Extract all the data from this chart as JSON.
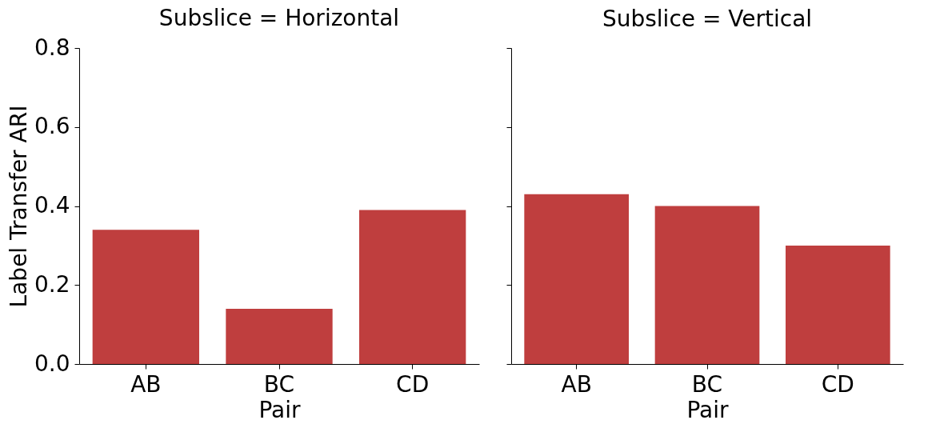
{
  "chart_data": [
    {
      "type": "bar",
      "title": "Subslice = Horizontal",
      "xlabel": "Pair",
      "ylabel": "Label Transfer ARI",
      "categories": [
        "AB",
        "BC",
        "CD"
      ],
      "values": [
        0.34,
        0.14,
        0.39
      ],
      "color": "#bf3e3e",
      "ylim": [
        0,
        0.8
      ],
      "yticks": [
        {
          "value": 0,
          "label": "0.0"
        },
        0.2,
        0.4,
        0.6,
        0.8
      ],
      "grid": false,
      "legend": false
    },
    {
      "type": "bar",
      "title": "Subslice = Vertical",
      "xlabel": "Pair",
      "categories": [
        "AB",
        "BC",
        "CD"
      ],
      "values": [
        0.43,
        0.4,
        0.3
      ],
      "color": "#bf3e3e",
      "ylim": [
        0,
        0.8
      ],
      "yticks": [
        0,
        0.2,
        0.4,
        0.6,
        0.8
      ],
      "grid": false,
      "legend": false,
      "tick_labels": "x"
    }
  ]
}
